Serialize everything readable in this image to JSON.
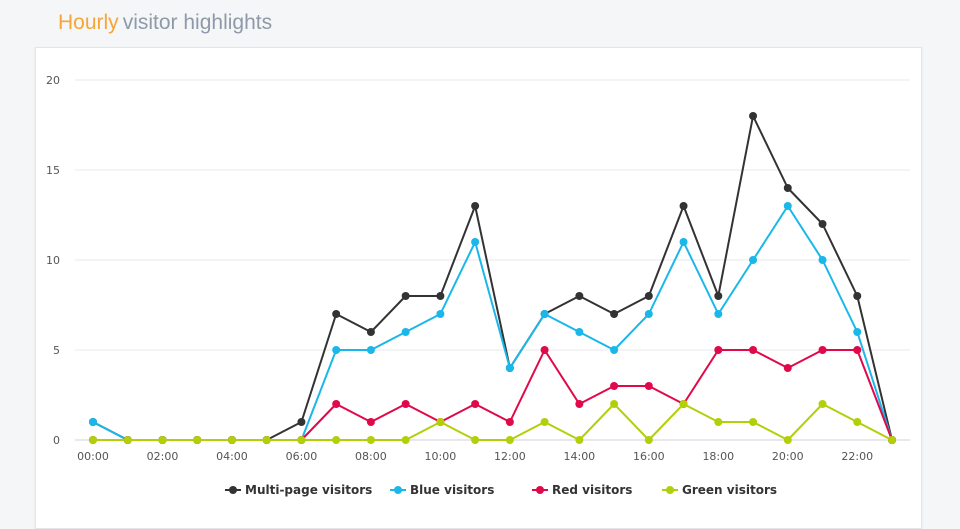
{
  "header": {
    "title_highlight": "Hourly",
    "title_rest": "visitor highlights"
  },
  "chart_data": {
    "type": "line",
    "title": "Hourly visitor highlights",
    "xlabel": "",
    "ylabel": "",
    "x": [
      "00:00",
      "01:00",
      "02:00",
      "03:00",
      "04:00",
      "05:00",
      "06:00",
      "07:00",
      "08:00",
      "09:00",
      "10:00",
      "11:00",
      "12:00",
      "13:00",
      "14:00",
      "15:00",
      "16:00",
      "17:00",
      "18:00",
      "19:00",
      "20:00",
      "21:00",
      "22:00",
      "23:00"
    ],
    "x_tick_labels": [
      "00:00",
      "02:00",
      "04:00",
      "06:00",
      "08:00",
      "10:00",
      "12:00",
      "14:00",
      "16:00",
      "18:00",
      "20:00",
      "22:00"
    ],
    "y_ticks": [
      0,
      5,
      10,
      15,
      20
    ],
    "ylim": [
      0,
      20
    ],
    "grid": true,
    "legend_position": "bottom-center",
    "series": [
      {
        "name": "Multi-page visitors",
        "color": "#333333",
        "values": [
          1,
          0,
          0,
          0,
          0,
          0,
          1,
          7,
          6,
          8,
          8,
          13,
          4,
          7,
          8,
          7,
          8,
          13,
          8,
          18,
          14,
          12,
          8,
          0
        ]
      },
      {
        "name": "Blue visitors",
        "color": "#1ab7ea",
        "values": [
          1,
          0,
          0,
          0,
          0,
          0,
          0,
          5,
          5,
          6,
          7,
          11,
          4,
          7,
          6,
          5,
          7,
          11,
          7,
          10,
          13,
          10,
          6,
          0
        ]
      },
      {
        "name": "Red visitors",
        "color": "#e0094a",
        "values": [
          0,
          0,
          0,
          0,
          0,
          0,
          0,
          2,
          1,
          2,
          1,
          2,
          1,
          5,
          2,
          3,
          3,
          2,
          5,
          5,
          4,
          5,
          5,
          0
        ]
      },
      {
        "name": "Green visitors",
        "color": "#b3cf0a",
        "values": [
          0,
          0,
          0,
          0,
          0,
          0,
          0,
          0,
          0,
          0,
          1,
          0,
          0,
          1,
          0,
          2,
          0,
          2,
          1,
          1,
          0,
          2,
          1,
          0
        ]
      }
    ]
  }
}
